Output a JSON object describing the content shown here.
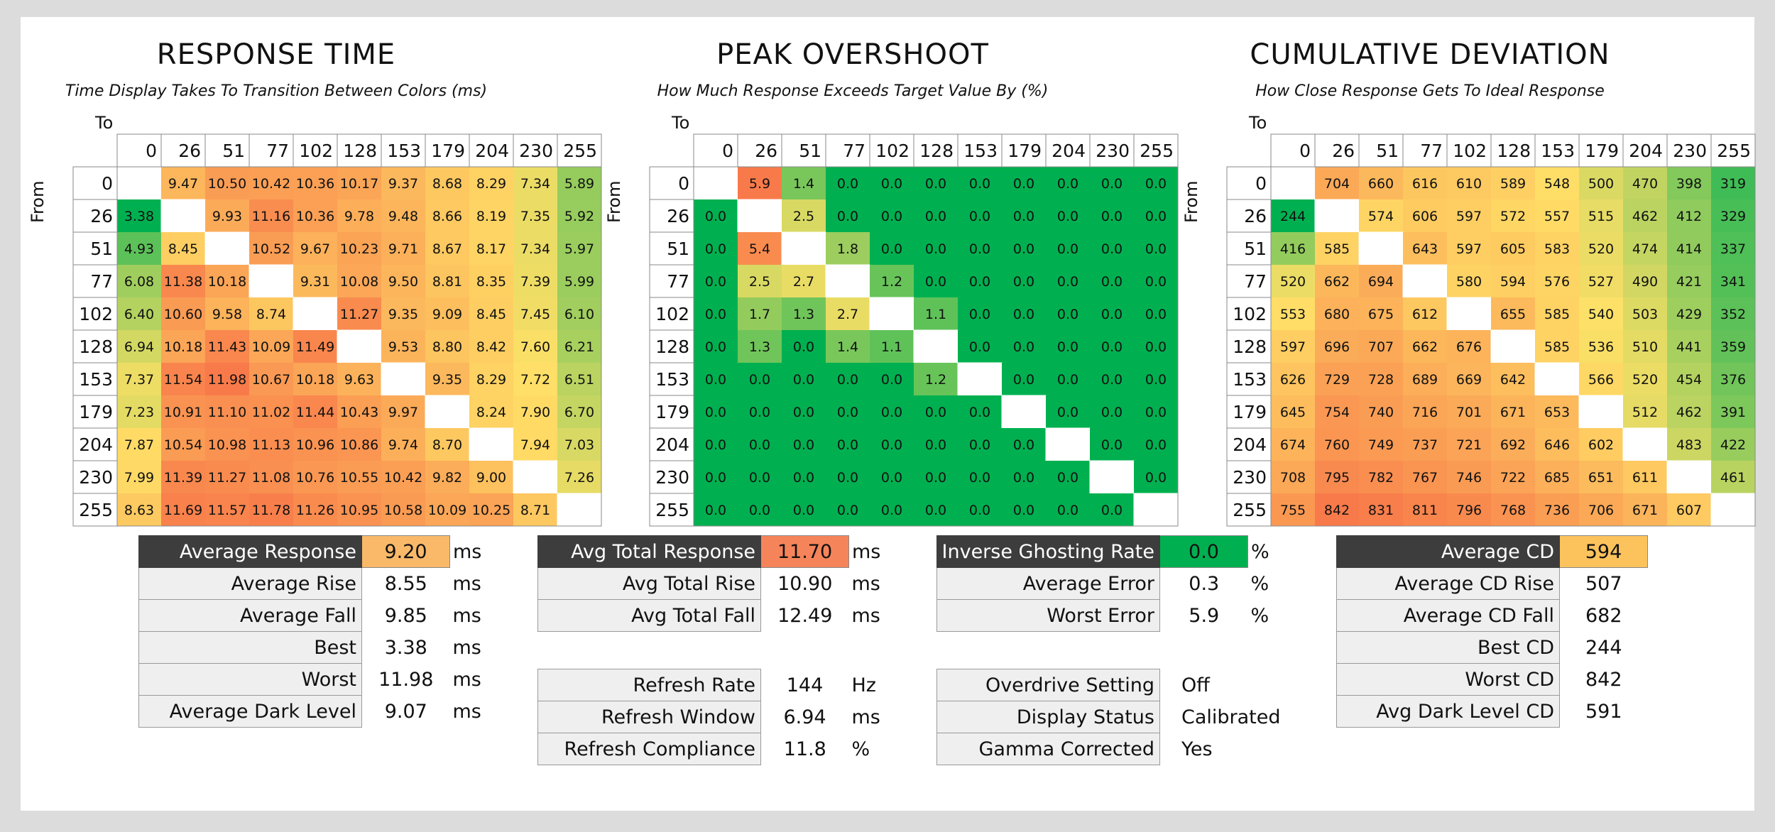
{
  "colors": {
    "good_green": "#00b050",
    "mid_yellow": "#ffe067",
    "bad_orange": "#f87a4a",
    "header_dark": "#3d3d3d"
  },
  "axis_labels": {
    "to": "To",
    "from": "From",
    "levels": [
      "0",
      "26",
      "51",
      "77",
      "102",
      "128",
      "153",
      "179",
      "204",
      "230",
      "255"
    ]
  },
  "panels": [
    {
      "id": "response-time",
      "title": "RESPONSE TIME",
      "subtitle": "Time Display Takes To Transition Between Colors (ms)",
      "color_range": [
        3.38,
        11.98
      ],
      "matrix": [
        [
          null,
          "9.47",
          "10.50",
          "10.42",
          "10.36",
          "10.17",
          "9.37",
          "8.68",
          "8.29",
          "7.34",
          "5.89"
        ],
        [
          "3.38",
          null,
          "9.93",
          "11.16",
          "10.36",
          "9.78",
          "9.48",
          "8.66",
          "8.19",
          "7.35",
          "5.92"
        ],
        [
          "4.93",
          "8.45",
          null,
          "10.52",
          "9.67",
          "10.23",
          "9.71",
          "8.67",
          "8.17",
          "7.34",
          "5.97"
        ],
        [
          "6.08",
          "11.38",
          "10.18",
          null,
          "9.31",
          "10.08",
          "9.50",
          "8.81",
          "8.35",
          "7.39",
          "5.99"
        ],
        [
          "6.40",
          "10.60",
          "9.58",
          "8.74",
          null,
          "11.27",
          "9.35",
          "9.09",
          "8.45",
          "7.45",
          "6.10"
        ],
        [
          "6.94",
          "10.18",
          "11.43",
          "10.09",
          "11.49",
          null,
          "9.53",
          "8.80",
          "8.42",
          "7.60",
          "6.21"
        ],
        [
          "7.37",
          "11.54",
          "11.98",
          "10.67",
          "10.18",
          "9.63",
          null,
          "9.35",
          "8.29",
          "7.72",
          "6.51"
        ],
        [
          "7.23",
          "10.91",
          "11.10",
          "11.02",
          "11.44",
          "10.43",
          "9.97",
          null,
          "8.24",
          "7.90",
          "6.70"
        ],
        [
          "7.87",
          "10.54",
          "10.98",
          "11.13",
          "10.96",
          "10.86",
          "9.74",
          "8.70",
          null,
          "7.94",
          "7.03"
        ],
        [
          "7.99",
          "11.39",
          "11.27",
          "11.08",
          "10.76",
          "10.55",
          "10.42",
          "9.82",
          "9.00",
          null,
          "7.26"
        ],
        [
          "8.63",
          "11.69",
          "11.57",
          "11.78",
          "11.26",
          "10.95",
          "10.58",
          "10.09",
          "10.25",
          "8.71",
          null
        ]
      ]
    },
    {
      "id": "peak-overshoot",
      "title": "PEAK OVERSHOOT",
      "subtitle": "How Much Response Exceeds Target Value By (%)",
      "color_range": [
        0,
        5.9
      ],
      "matrix": [
        [
          null,
          "5.9",
          "1.4",
          "0.0",
          "0.0",
          "0.0",
          "0.0",
          "0.0",
          "0.0",
          "0.0",
          "0.0"
        ],
        [
          "0.0",
          null,
          "2.5",
          "0.0",
          "0.0",
          "0.0",
          "0.0",
          "0.0",
          "0.0",
          "0.0",
          "0.0"
        ],
        [
          "0.0",
          "5.4",
          null,
          "1.8",
          "0.0",
          "0.0",
          "0.0",
          "0.0",
          "0.0",
          "0.0",
          "0.0"
        ],
        [
          "0.0",
          "2.5",
          "2.7",
          null,
          "1.2",
          "0.0",
          "0.0",
          "0.0",
          "0.0",
          "0.0",
          "0.0"
        ],
        [
          "0.0",
          "1.7",
          "1.3",
          "2.7",
          null,
          "1.1",
          "0.0",
          "0.0",
          "0.0",
          "0.0",
          "0.0"
        ],
        [
          "0.0",
          "1.3",
          "0.0",
          "1.4",
          "1.1",
          null,
          "0.0",
          "0.0",
          "0.0",
          "0.0",
          "0.0"
        ],
        [
          "0.0",
          "0.0",
          "0.0",
          "0.0",
          "0.0",
          "1.2",
          null,
          "0.0",
          "0.0",
          "0.0",
          "0.0"
        ],
        [
          "0.0",
          "0.0",
          "0.0",
          "0.0",
          "0.0",
          "0.0",
          "0.0",
          null,
          "0.0",
          "0.0",
          "0.0"
        ],
        [
          "0.0",
          "0.0",
          "0.0",
          "0.0",
          "0.0",
          "0.0",
          "0.0",
          "0.0",
          null,
          "0.0",
          "0.0"
        ],
        [
          "0.0",
          "0.0",
          "0.0",
          "0.0",
          "0.0",
          "0.0",
          "0.0",
          "0.0",
          "0.0",
          null,
          "0.0"
        ],
        [
          "0.0",
          "0.0",
          "0.0",
          "0.0",
          "0.0",
          "0.0",
          "0.0",
          "0.0",
          "0.0",
          "0.0",
          null
        ]
      ]
    },
    {
      "id": "cumulative-deviation",
      "title": "CUMULATIVE DEVIATION",
      "subtitle": "How Close Response Gets To Ideal Response",
      "color_range": [
        244,
        842
      ],
      "matrix": [
        [
          null,
          "704",
          "660",
          "616",
          "610",
          "589",
          "548",
          "500",
          "470",
          "398",
          "319"
        ],
        [
          "244",
          null,
          "574",
          "606",
          "597",
          "572",
          "557",
          "515",
          "462",
          "412",
          "329"
        ],
        [
          "416",
          "585",
          null,
          "643",
          "597",
          "605",
          "583",
          "520",
          "474",
          "414",
          "337"
        ],
        [
          "520",
          "662",
          "694",
          null,
          "580",
          "594",
          "576",
          "527",
          "490",
          "421",
          "341"
        ],
        [
          "553",
          "680",
          "675",
          "612",
          null,
          "655",
          "585",
          "540",
          "503",
          "429",
          "352"
        ],
        [
          "597",
          "696",
          "707",
          "662",
          "676",
          null,
          "585",
          "536",
          "510",
          "441",
          "359"
        ],
        [
          "626",
          "729",
          "728",
          "689",
          "669",
          "642",
          null,
          "566",
          "520",
          "454",
          "376"
        ],
        [
          "645",
          "754",
          "740",
          "716",
          "701",
          "671",
          "653",
          null,
          "512",
          "462",
          "391"
        ],
        [
          "674",
          "760",
          "749",
          "737",
          "721",
          "692",
          "646",
          "602",
          null,
          "483",
          "422"
        ],
        [
          "708",
          "795",
          "782",
          "767",
          "746",
          "722",
          "685",
          "651",
          "611",
          null,
          "461"
        ],
        [
          "755",
          "842",
          "831",
          "811",
          "796",
          "768",
          "736",
          "706",
          "671",
          "607",
          null
        ]
      ]
    }
  ],
  "stats": {
    "response": {
      "headline": {
        "label": "Average Response",
        "value": "9.20",
        "unit": "ms",
        "color": "#f9b969"
      },
      "rows": [
        {
          "label": "Average Rise",
          "value": "8.55",
          "unit": "ms"
        },
        {
          "label": "Average Fall",
          "value": "9.85",
          "unit": "ms"
        },
        {
          "label": "Best",
          "value": "3.38",
          "unit": "ms"
        },
        {
          "label": "Worst",
          "value": "11.98",
          "unit": "ms"
        },
        {
          "label": "Average Dark Level",
          "value": "9.07",
          "unit": "ms"
        }
      ]
    },
    "total": {
      "headline": {
        "label": "Avg Total Response",
        "value": "11.70",
        "unit": "ms",
        "color": "#f6845a"
      },
      "rows": [
        {
          "label": "Avg Total Rise",
          "value": "10.90",
          "unit": "ms"
        },
        {
          "label": "Avg Total Fall",
          "value": "12.49",
          "unit": "ms"
        }
      ],
      "refresh_rows": [
        {
          "label": "Refresh Rate",
          "value": "144",
          "unit": "Hz"
        },
        {
          "label": "Refresh Window",
          "value": "6.94",
          "unit": "ms"
        },
        {
          "label": "Refresh Compliance",
          "value": "11.8",
          "unit": "%"
        }
      ]
    },
    "overshoot": {
      "headline": {
        "label": "Inverse Ghosting Rate",
        "value": "0.0",
        "unit": "%",
        "color": "#00b050"
      },
      "rows": [
        {
          "label": "Average Error",
          "value": "0.3",
          "unit": "%"
        },
        {
          "label": "Worst Error",
          "value": "5.9",
          "unit": "%"
        }
      ],
      "settings_rows": [
        {
          "label": "Overdrive Setting",
          "value": "Off"
        },
        {
          "label": "Display Status",
          "value": "Calibrated"
        },
        {
          "label": "Gamma Corrected",
          "value": "Yes"
        }
      ]
    },
    "cd": {
      "headline": {
        "label": "Average CD",
        "value": "594",
        "unit": "",
        "color": "#fcc35c"
      },
      "rows": [
        {
          "label": "Average CD Rise",
          "value": "507"
        },
        {
          "label": "Average CD Fall",
          "value": "682"
        },
        {
          "label": "Best CD",
          "value": "244"
        },
        {
          "label": "Worst CD",
          "value": "842"
        },
        {
          "label": "Avg Dark Level CD",
          "value": "591"
        }
      ]
    }
  }
}
